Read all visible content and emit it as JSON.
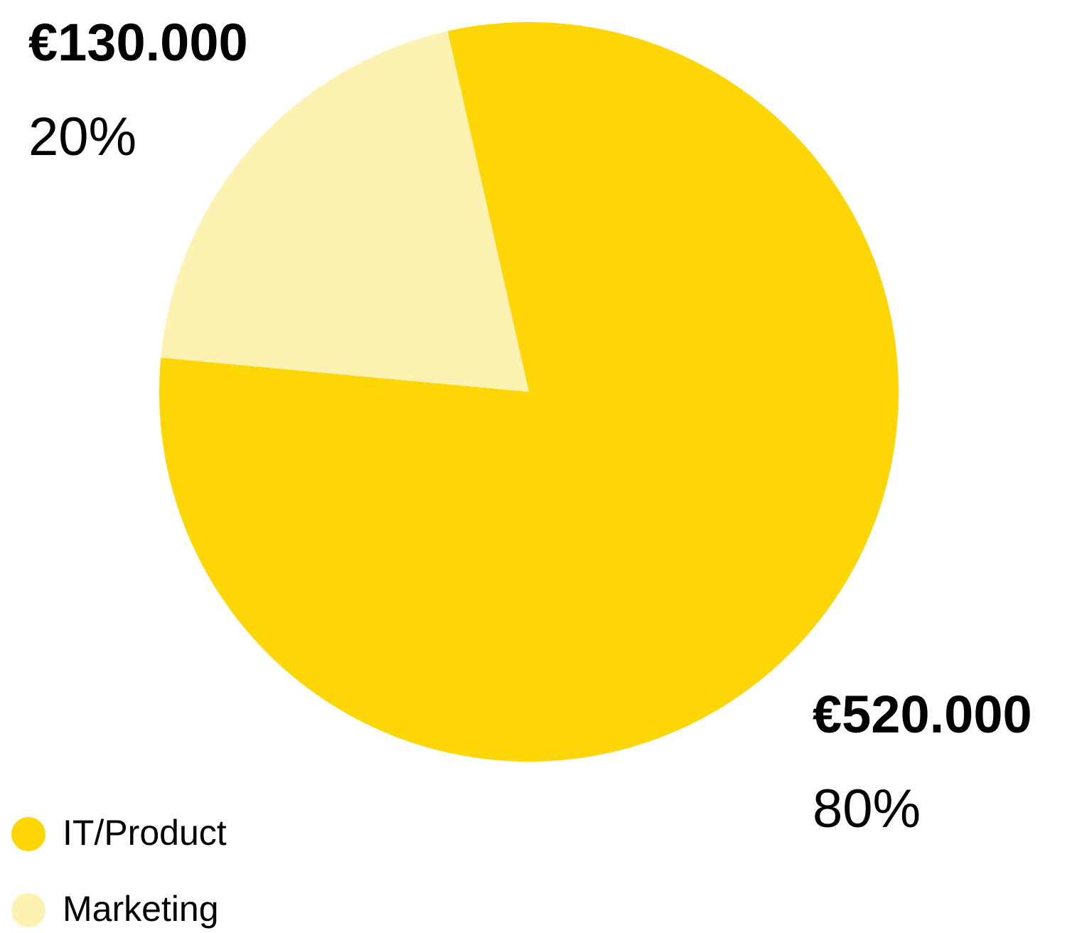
{
  "chart_data": {
    "type": "pie",
    "categories": [
      "IT/Product",
      "Marketing"
    ],
    "values": [
      520000,
      130000
    ],
    "value_labels": [
      "€520.000",
      "€130.000"
    ],
    "shares": [
      80,
      20
    ],
    "share_labels": [
      "80%",
      "20%"
    ],
    "colors": [
      "#fed505",
      "#fef2b3"
    ]
  }
}
